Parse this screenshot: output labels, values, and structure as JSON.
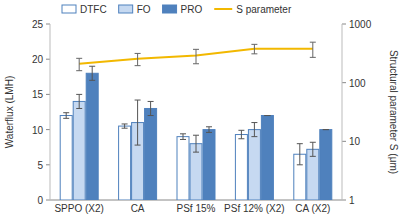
{
  "chart_data": {
    "type": "bar",
    "categories": [
      "SPPO (X2)",
      "CA",
      "PSf 15%",
      "PSf 12% (X2)",
      "CA (X2)"
    ],
    "y_label": "Waterflux (LMH)",
    "y2_label": "Structural parameter S (μm)",
    "ylim": [
      0,
      25
    ],
    "yticks": [
      0,
      5,
      10,
      15,
      20,
      25
    ],
    "y2lim": [
      1,
      1000
    ],
    "y2ticks": [
      1,
      10,
      100,
      1000
    ],
    "log": "y2",
    "grid": false,
    "legend": "top",
    "series": [
      {
        "name": "DTFC",
        "color": "#ffffff",
        "values": [
          12,
          10.5,
          9,
          9.3,
          6.5
        ],
        "errors": [
          0.4,
          0.3,
          0.4,
          0.6,
          1.5
        ]
      },
      {
        "name": "FO",
        "color": "#c6d9f1",
        "values": [
          14,
          11,
          8,
          10,
          7.2
        ],
        "errors": [
          1,
          3.2,
          1.2,
          1,
          1
        ]
      },
      {
        "name": "PRO",
        "color": "#4f81bd",
        "values": [
          18,
          13,
          10,
          12,
          10
        ],
        "errors": [
          1,
          1,
          0.4,
          0,
          0
        ]
      },
      {
        "name": "S parameter",
        "type": "line",
        "axis": "y2",
        "color": "#f2b800",
        "values": [
          210,
          255,
          290,
          380,
          380
        ],
        "errors": [
          50,
          60,
          80,
          70,
          110
        ]
      }
    ]
  }
}
